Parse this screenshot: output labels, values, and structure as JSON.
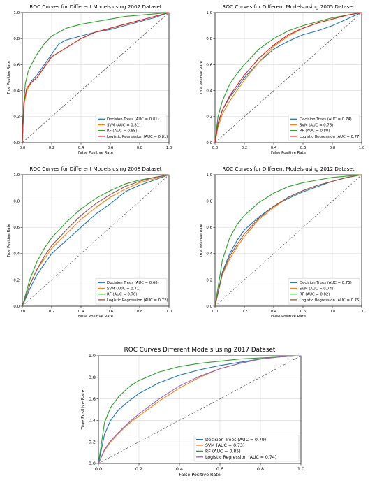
{
  "chart_data": [
    {
      "type": "line",
      "title": "ROC Curves for Different Models using 2002 Dataset",
      "xlabel": "False Positive Rate",
      "ylabel": "True Positive Rate",
      "xlim": [
        0,
        1
      ],
      "ylim": [
        0,
        1
      ],
      "xticks": [
        "0.0",
        "0.2",
        "0.4",
        "0.6",
        "0.8",
        "1.0"
      ],
      "yticks": [
        "0.0",
        "0.2",
        "0.4",
        "0.6",
        "0.8",
        "1.0"
      ],
      "grid": true,
      "legend_position": "bottom-right",
      "series": [
        {
          "name": "Decision Trees (AUC = 0.81)",
          "color": "#1f77b4",
          "x": [
            0,
            0.01,
            0.03,
            0.06,
            0.1,
            0.15,
            0.2,
            0.25,
            0.3,
            0.4,
            0.5,
            0.6,
            0.7,
            0.8,
            0.9,
            1.0
          ],
          "y": [
            0,
            0.3,
            0.4,
            0.47,
            0.52,
            0.6,
            0.68,
            0.76,
            0.79,
            0.82,
            0.85,
            0.87,
            0.9,
            0.93,
            0.96,
            1.0
          ]
        },
        {
          "name": "SVM (AUC = 0.81)",
          "color": "#ff7f0e",
          "x": [
            0,
            0.01,
            0.03,
            0.06,
            0.1,
            0.15,
            0.2,
            0.3,
            0.4,
            0.5,
            0.6,
            0.7,
            0.8,
            0.9,
            1.0
          ],
          "y": [
            0,
            0.28,
            0.4,
            0.46,
            0.5,
            0.58,
            0.66,
            0.73,
            0.8,
            0.85,
            0.88,
            0.91,
            0.94,
            0.97,
            1.0
          ]
        },
        {
          "name": "RF (AUC = 0.88)",
          "color": "#2ca02c",
          "x": [
            0,
            0.01,
            0.02,
            0.04,
            0.07,
            0.1,
            0.15,
            0.2,
            0.3,
            0.4,
            0.5,
            0.6,
            0.7,
            0.8,
            0.9,
            1.0
          ],
          "y": [
            0,
            0.3,
            0.45,
            0.55,
            0.62,
            0.68,
            0.76,
            0.82,
            0.88,
            0.91,
            0.93,
            0.95,
            0.97,
            0.98,
            0.99,
            1.0
          ]
        },
        {
          "name": "Logistic Regression (AUC = 0.81)",
          "color": "#d62728",
          "x": [
            0,
            0.01,
            0.03,
            0.06,
            0.1,
            0.15,
            0.2,
            0.3,
            0.4,
            0.5,
            0.6,
            0.7,
            0.8,
            0.9,
            1.0
          ],
          "y": [
            0,
            0.3,
            0.42,
            0.46,
            0.5,
            0.58,
            0.66,
            0.73,
            0.8,
            0.85,
            0.88,
            0.91,
            0.94,
            0.97,
            1.0
          ]
        }
      ]
    },
    {
      "type": "line",
      "title": "ROC Curves for Different Models using 2005 Dataset",
      "xlabel": "False Positive Rate",
      "ylabel": "True Positive Rate",
      "xlim": [
        0,
        1
      ],
      "ylim": [
        0,
        1
      ],
      "xticks": [
        "0.0",
        "0.2",
        "0.4",
        "0.6",
        "0.8",
        "1.0"
      ],
      "yticks": [
        "0.0",
        "0.2",
        "0.4",
        "0.6",
        "0.8",
        "1.0"
      ],
      "grid": true,
      "legend_position": "bottom-right",
      "series": [
        {
          "name": "Decision Trees (AUC = 0.74)",
          "color": "#1f77b4",
          "x": [
            0,
            0.02,
            0.05,
            0.1,
            0.15,
            0.2,
            0.3,
            0.4,
            0.5,
            0.6,
            0.7,
            0.8,
            0.9,
            1.0
          ],
          "y": [
            0,
            0.15,
            0.25,
            0.35,
            0.42,
            0.5,
            0.62,
            0.72,
            0.78,
            0.83,
            0.86,
            0.9,
            0.95,
            1.0
          ]
        },
        {
          "name": "SVM (AUC = 0.76)",
          "color": "#ff7f0e",
          "x": [
            0,
            0.02,
            0.05,
            0.1,
            0.15,
            0.2,
            0.3,
            0.4,
            0.5,
            0.6,
            0.7,
            0.8,
            0.9,
            1.0
          ],
          "y": [
            0,
            0.12,
            0.22,
            0.32,
            0.4,
            0.48,
            0.62,
            0.74,
            0.82,
            0.88,
            0.92,
            0.95,
            0.98,
            1.0
          ]
        },
        {
          "name": "RF (AUC = 0.80)",
          "color": "#2ca02c",
          "x": [
            0,
            0.02,
            0.05,
            0.1,
            0.15,
            0.2,
            0.3,
            0.4,
            0.5,
            0.6,
            0.7,
            0.8,
            0.9,
            1.0
          ],
          "y": [
            0,
            0.2,
            0.32,
            0.45,
            0.53,
            0.6,
            0.72,
            0.8,
            0.86,
            0.9,
            0.93,
            0.96,
            0.98,
            1.0
          ]
        },
        {
          "name": "Logistic Regression (AUC = 0.77)",
          "color": "#d62728",
          "x": [
            0,
            0.02,
            0.05,
            0.1,
            0.15,
            0.2,
            0.3,
            0.4,
            0.5,
            0.6,
            0.7,
            0.8,
            0.9,
            1.0
          ],
          "y": [
            0,
            0.14,
            0.25,
            0.36,
            0.44,
            0.52,
            0.65,
            0.75,
            0.83,
            0.88,
            0.92,
            0.95,
            0.98,
            1.0
          ]
        }
      ]
    },
    {
      "type": "line",
      "title": "ROC Curves for Different Models using 2008 Dataset",
      "xlabel": "False Positive Rate",
      "ylabel": "True Positive Rate",
      "xlim": [
        0,
        1
      ],
      "ylim": [
        0,
        1
      ],
      "xticks": [
        "0.0",
        "0.2",
        "0.4",
        "0.6",
        "0.8",
        "1.0"
      ],
      "yticks": [
        "0.0",
        "0.2",
        "0.4",
        "0.6",
        "0.8",
        "1.0"
      ],
      "grid": true,
      "legend_position": "bottom-right",
      "series": [
        {
          "name": "Decision Trees (AUC = 0.68)",
          "color": "#1f77b4",
          "x": [
            0,
            0.05,
            0.1,
            0.15,
            0.2,
            0.3,
            0.4,
            0.5,
            0.6,
            0.7,
            0.8,
            0.9,
            1.0
          ],
          "y": [
            0,
            0.13,
            0.24,
            0.32,
            0.4,
            0.5,
            0.6,
            0.7,
            0.78,
            0.87,
            0.92,
            0.96,
            1.0
          ]
        },
        {
          "name": "SVM (AUC = 0.71)",
          "color": "#ff7f0e",
          "x": [
            0,
            0.05,
            0.1,
            0.15,
            0.2,
            0.3,
            0.4,
            0.5,
            0.6,
            0.7,
            0.8,
            0.9,
            1.0
          ],
          "y": [
            0,
            0.16,
            0.28,
            0.36,
            0.44,
            0.55,
            0.66,
            0.75,
            0.83,
            0.89,
            0.94,
            0.97,
            1.0
          ]
        },
        {
          "name": "RF (AUC = 0.76)",
          "color": "#2ca02c",
          "x": [
            0,
            0.05,
            0.1,
            0.15,
            0.2,
            0.3,
            0.4,
            0.5,
            0.6,
            0.7,
            0.8,
            0.9,
            1.0
          ],
          "y": [
            0,
            0.2,
            0.34,
            0.44,
            0.52,
            0.64,
            0.74,
            0.82,
            0.88,
            0.93,
            0.96,
            0.98,
            1.0
          ]
        },
        {
          "name": "Logistic Regression (AUC = 0.72)",
          "color": "#8c564b",
          "x": [
            0,
            0.05,
            0.1,
            0.15,
            0.2,
            0.3,
            0.4,
            0.5,
            0.6,
            0.7,
            0.8,
            0.9,
            1.0
          ],
          "y": [
            0,
            0.16,
            0.28,
            0.38,
            0.46,
            0.58,
            0.69,
            0.78,
            0.85,
            0.91,
            0.95,
            0.98,
            1.0
          ]
        }
      ]
    },
    {
      "type": "line",
      "title": "ROC Curves for Different Models using 2012 Dataset",
      "xlabel": "False Positive Rate",
      "ylabel": "True Positive Rate",
      "xlim": [
        0,
        1
      ],
      "ylim": [
        0,
        1
      ],
      "xticks": [
        "0.0",
        "0.2",
        "0.4",
        "0.6",
        "0.8",
        "1.0"
      ],
      "yticks": [
        "0.0",
        "0.2",
        "0.4",
        "0.6",
        "0.8",
        "1.0"
      ],
      "grid": true,
      "legend_position": "bottom-right",
      "series": [
        {
          "name": "Decision Trees (AUC = 0.75)",
          "color": "#1f77b4",
          "x": [
            0,
            0.05,
            0.1,
            0.15,
            0.2,
            0.3,
            0.4,
            0.5,
            0.6,
            0.7,
            0.8,
            0.9,
            1.0
          ],
          "y": [
            0,
            0.26,
            0.4,
            0.5,
            0.58,
            0.68,
            0.76,
            0.82,
            0.87,
            0.91,
            0.95,
            0.98,
            1.0
          ]
        },
        {
          "name": "SVM (AUC = 0.74)",
          "color": "#ff7f0e",
          "x": [
            0,
            0.05,
            0.1,
            0.15,
            0.2,
            0.3,
            0.4,
            0.5,
            0.6,
            0.7,
            0.8,
            0.9,
            1.0
          ],
          "y": [
            0,
            0.24,
            0.36,
            0.45,
            0.53,
            0.66,
            0.75,
            0.83,
            0.88,
            0.92,
            0.95,
            0.98,
            1.0
          ]
        },
        {
          "name": "RF (AUC = 0.82)",
          "color": "#2ca02c",
          "x": [
            0,
            0.05,
            0.1,
            0.15,
            0.2,
            0.3,
            0.4,
            0.5,
            0.6,
            0.7,
            0.8,
            0.9,
            1.0
          ],
          "y": [
            0,
            0.35,
            0.52,
            0.62,
            0.69,
            0.79,
            0.86,
            0.91,
            0.94,
            0.96,
            0.98,
            0.99,
            1.0
          ]
        },
        {
          "name": "Logistic Regression (AUC = 0.75)",
          "color": "#8c564b",
          "x": [
            0,
            0.05,
            0.1,
            0.15,
            0.2,
            0.3,
            0.4,
            0.5,
            0.6,
            0.7,
            0.8,
            0.9,
            1.0
          ],
          "y": [
            0,
            0.25,
            0.38,
            0.47,
            0.55,
            0.67,
            0.76,
            0.83,
            0.88,
            0.92,
            0.95,
            0.98,
            1.0
          ]
        }
      ]
    },
    {
      "type": "line",
      "title": "ROC Curves Different Models using 2017 Dataset",
      "xlabel": "False Positive Rate",
      "ylabel": "True Positive Rate",
      "xlim": [
        0,
        1
      ],
      "ylim": [
        0,
        1
      ],
      "xticks": [
        "0.0",
        "0.2",
        "0.4",
        "0.6",
        "0.8",
        "1.0"
      ],
      "yticks": [
        "0.0",
        "0.2",
        "0.4",
        "0.6",
        "0.8",
        "1.0"
      ],
      "grid": true,
      "legend_position": "bottom-right",
      "series": [
        {
          "name": "Decision Trees (AUC = 0.79)",
          "color": "#1f77b4",
          "x": [
            0,
            0.03,
            0.06,
            0.1,
            0.15,
            0.2,
            0.3,
            0.4,
            0.5,
            0.6,
            0.7,
            0.8,
            0.9,
            1.0
          ],
          "y": [
            0,
            0.27,
            0.4,
            0.5,
            0.58,
            0.65,
            0.75,
            0.82,
            0.87,
            0.91,
            0.94,
            0.97,
            0.99,
            1.0
          ]
        },
        {
          "name": "SVM (AUC = 0.73)",
          "color": "#ff7f0e",
          "x": [
            0,
            0.03,
            0.06,
            0.1,
            0.15,
            0.2,
            0.3,
            0.4,
            0.5,
            0.6,
            0.7,
            0.8,
            0.9,
            1.0
          ],
          "y": [
            0,
            0.12,
            0.2,
            0.28,
            0.37,
            0.44,
            0.58,
            0.7,
            0.8,
            0.88,
            0.93,
            0.97,
            0.99,
            1.0
          ]
        },
        {
          "name": "RF (AUC = 0.85)",
          "color": "#2ca02c",
          "x": [
            0,
            0.03,
            0.06,
            0.1,
            0.15,
            0.2,
            0.3,
            0.4,
            0.5,
            0.6,
            0.7,
            0.8,
            0.9,
            1.0
          ],
          "y": [
            0,
            0.38,
            0.52,
            0.62,
            0.71,
            0.77,
            0.85,
            0.9,
            0.93,
            0.95,
            0.97,
            0.98,
            0.99,
            1.0
          ]
        },
        {
          "name": "Logistic Regression (AUC = 0.74)",
          "color": "#9467bd",
          "x": [
            0,
            0.03,
            0.06,
            0.1,
            0.15,
            0.2,
            0.3,
            0.4,
            0.5,
            0.6,
            0.7,
            0.8,
            0.9,
            1.0
          ],
          "y": [
            0,
            0.13,
            0.21,
            0.29,
            0.38,
            0.46,
            0.6,
            0.72,
            0.81,
            0.88,
            0.93,
            0.97,
            0.99,
            1.0
          ]
        }
      ]
    }
  ]
}
